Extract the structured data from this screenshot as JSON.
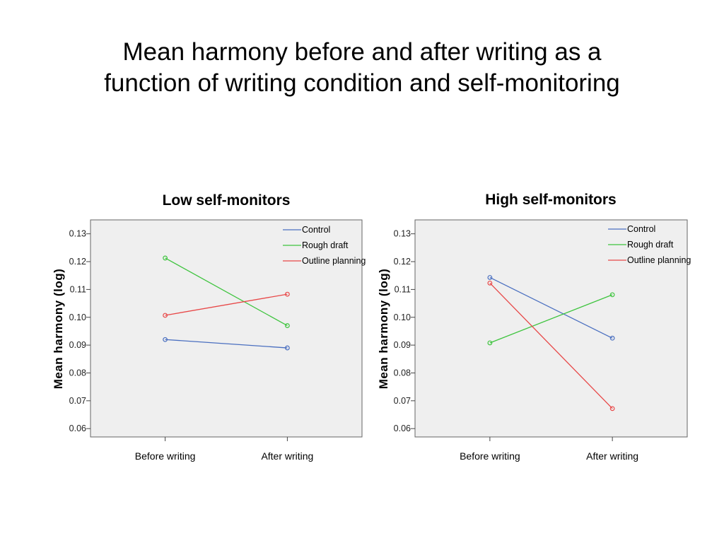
{
  "slide": {
    "title_line1": "Mean harmony before and after writing as a",
    "title_line2": "function of writing condition and self-monitoring"
  },
  "chart_data": [
    {
      "type": "line",
      "title": "Low self-monitors",
      "xlabel": "",
      "ylabel": "Mean harmony (log)",
      "categories": [
        "Before writing",
        "After writing"
      ],
      "ylim": [
        0.057,
        0.135
      ],
      "yticks": [
        0.06,
        0.07,
        0.08,
        0.09,
        0.1,
        0.11,
        0.12,
        0.13
      ],
      "ytick_labels": [
        "0.06",
        "0.07",
        "0.08",
        "0.09",
        "0.10",
        "0.11",
        "0.12",
        "0.13"
      ],
      "legend_position": "top-right",
      "grid": false,
      "series": [
        {
          "name": "Control",
          "values": [
            0.092,
            0.089
          ],
          "color": "#4a6fc0"
        },
        {
          "name": "Rough draft",
          "values": [
            0.1213,
            0.097
          ],
          "color": "#3ec43e"
        },
        {
          "name": "Outline planning",
          "values": [
            0.1007,
            0.1083
          ],
          "color": "#e84848"
        }
      ]
    },
    {
      "type": "line",
      "title": "High self-monitors",
      "xlabel": "",
      "ylabel": "Mean harmony (log)",
      "categories": [
        "Before writing",
        "After writing"
      ],
      "ylim": [
        0.057,
        0.135
      ],
      "yticks": [
        0.06,
        0.07,
        0.08,
        0.09,
        0.1,
        0.11,
        0.12,
        0.13
      ],
      "ytick_labels": [
        "0.06",
        "0.07",
        "0.08",
        "0.09",
        "0.10",
        "0.11",
        "0.12",
        "0.13"
      ],
      "legend_position": "top-right",
      "grid": false,
      "series": [
        {
          "name": "Control",
          "values": [
            0.1143,
            0.0925
          ],
          "color": "#4a6fc0"
        },
        {
          "name": "Rough draft",
          "values": [
            0.0908,
            0.1081
          ],
          "color": "#3ec43e"
        },
        {
          "name": "Outline planning",
          "values": [
            0.1123,
            0.0672
          ],
          "color": "#e84848"
        }
      ]
    }
  ]
}
